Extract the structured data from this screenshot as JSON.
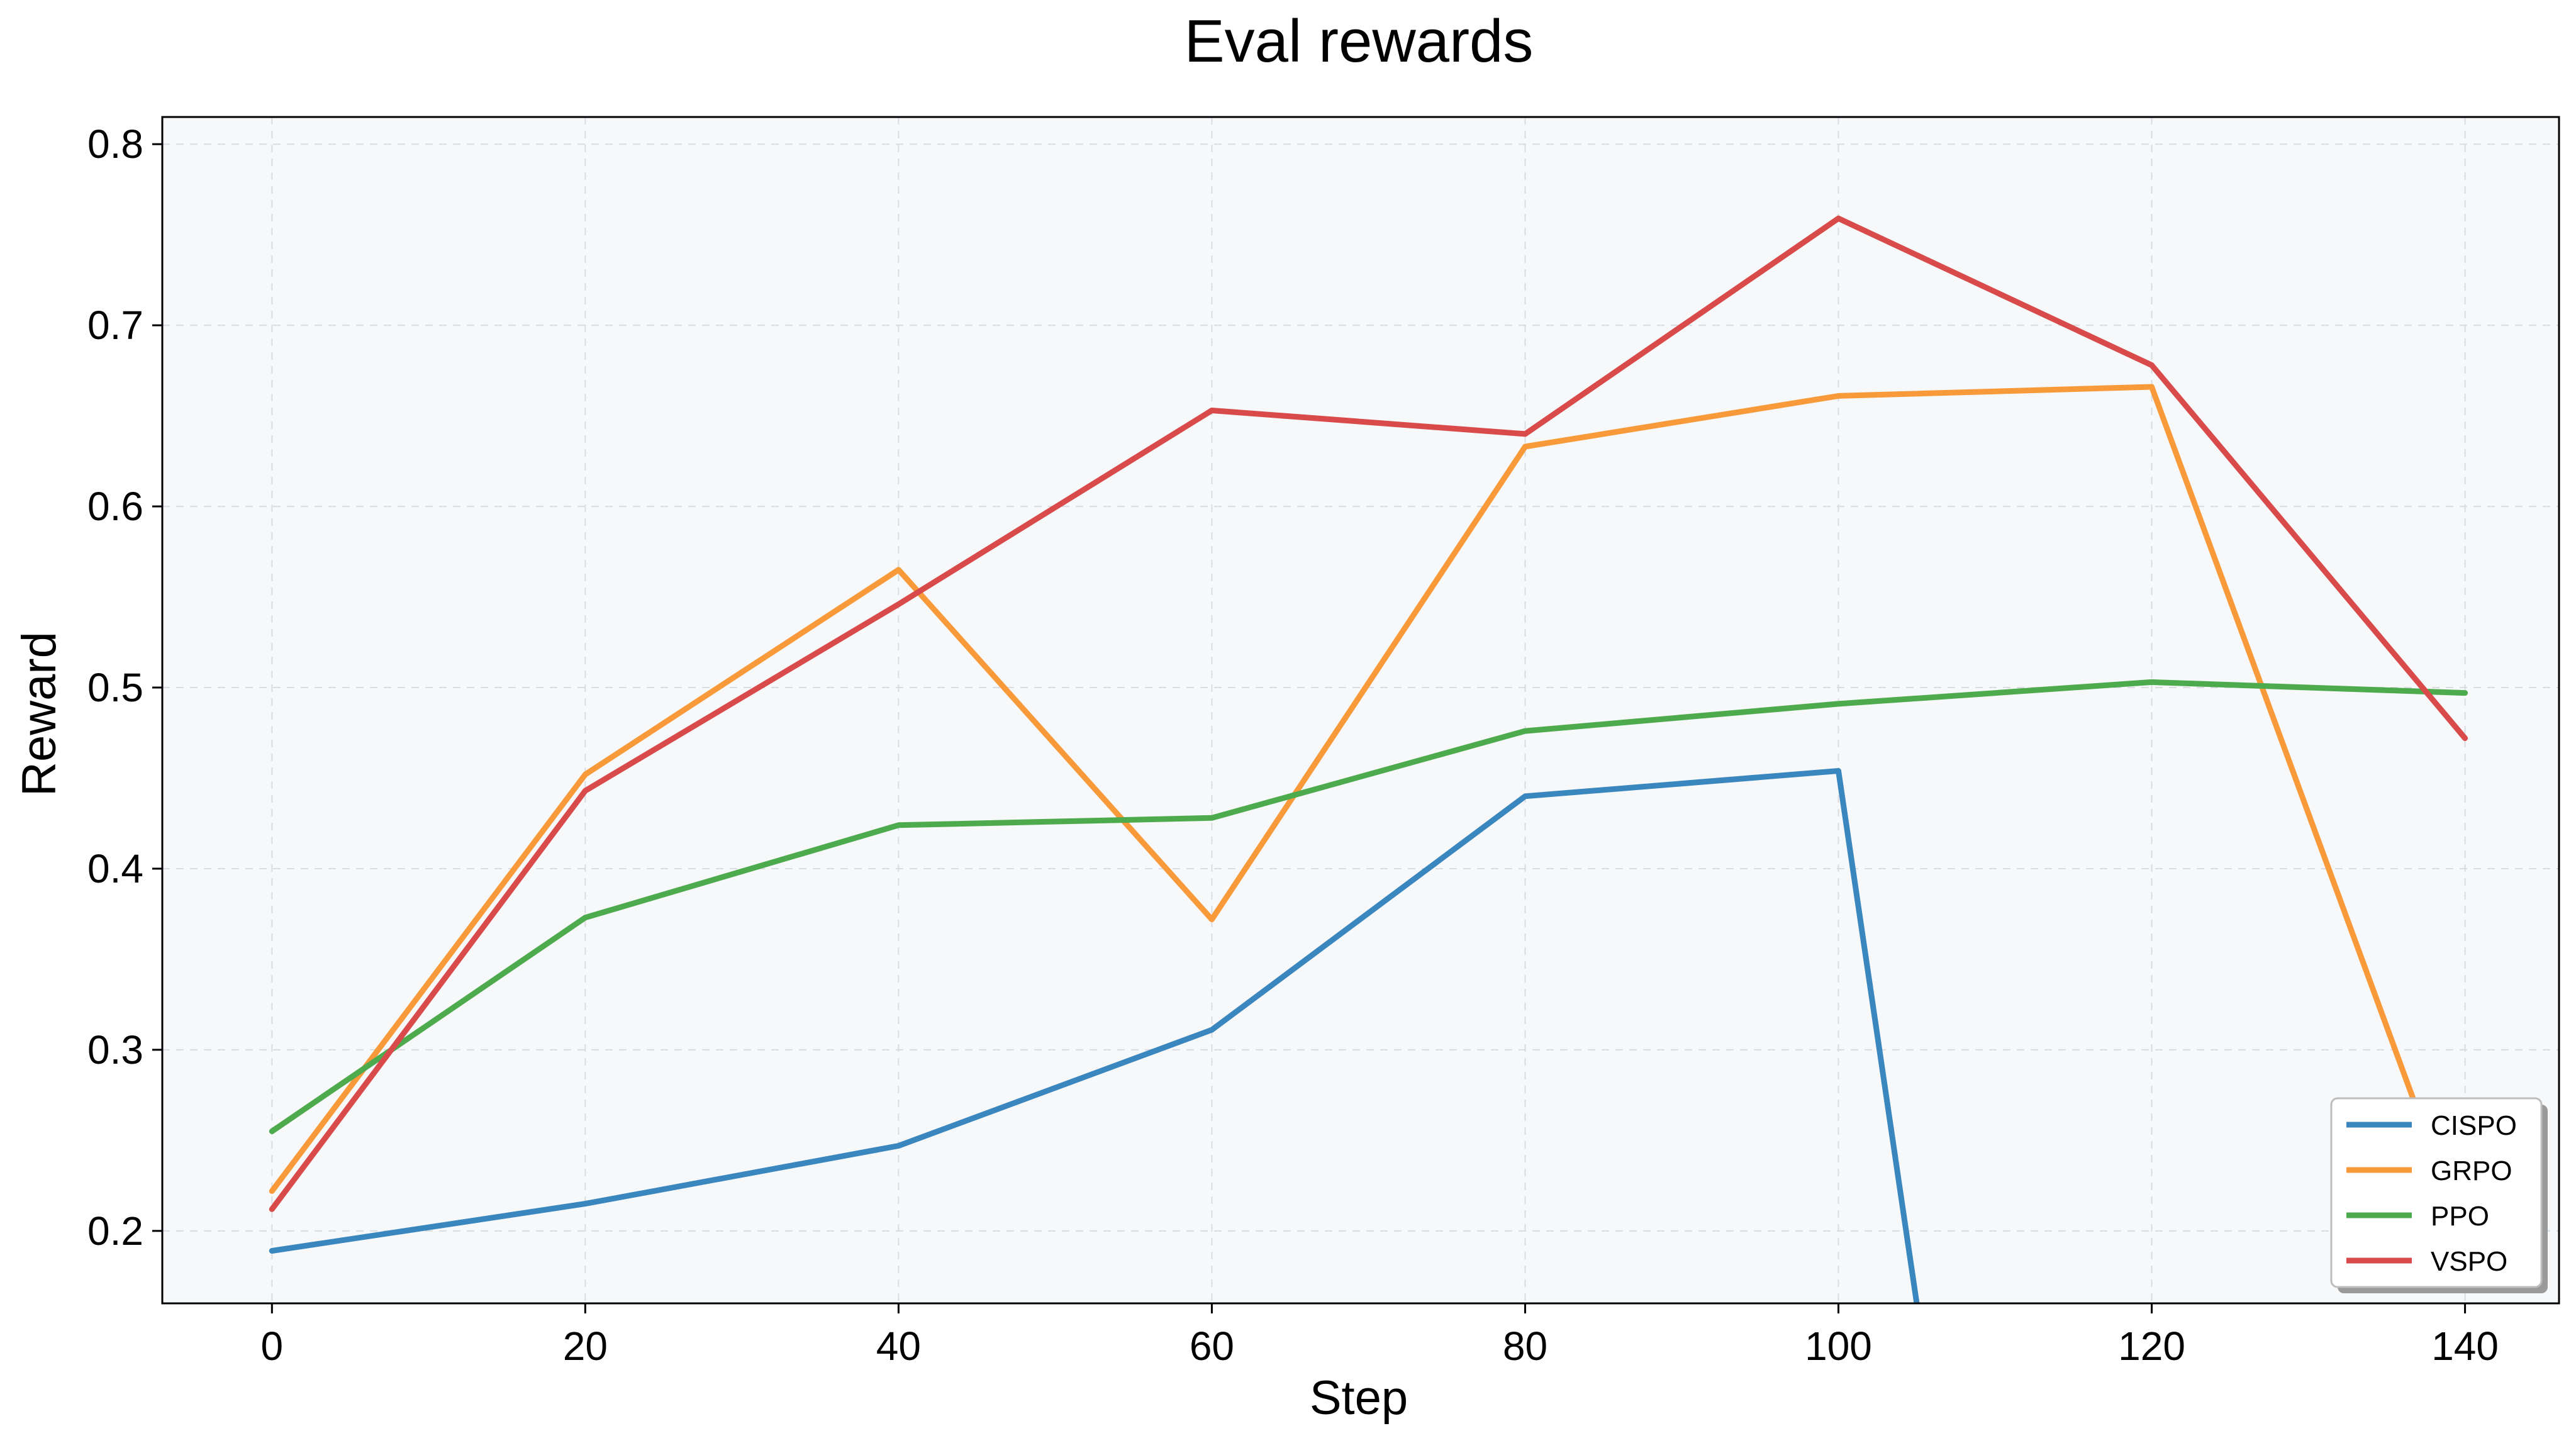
{
  "chart_data": {
    "type": "line",
    "title": "Eval rewards",
    "xlabel": "Step",
    "ylabel": "Reward",
    "x": [
      0,
      20,
      40,
      60,
      80,
      100,
      120,
      140
    ],
    "xlim": [
      -7,
      146
    ],
    "ylim": [
      0.16,
      0.815
    ],
    "xticks": [
      0,
      20,
      40,
      60,
      80,
      100,
      120,
      140
    ],
    "yticks": [
      0.2,
      0.3,
      0.4,
      0.5,
      0.6,
      0.7,
      0.8
    ],
    "grid": true,
    "legend_position": "lower right",
    "background": "#f6f8fa",
    "series": [
      {
        "name": "CISPO",
        "color": "#3a86be",
        "points": [
          [
            0,
            0.189
          ],
          [
            20,
            0.215
          ],
          [
            40,
            0.247
          ],
          [
            60,
            0.311
          ],
          [
            80,
            0.44
          ],
          [
            100,
            0.454
          ],
          [
            105,
            0.16
          ]
        ]
      },
      {
        "name": "GRPO",
        "color": "#f89a3a",
        "points": [
          [
            0,
            0.222
          ],
          [
            20,
            0.452
          ],
          [
            40,
            0.565
          ],
          [
            60,
            0.372
          ],
          [
            80,
            0.633
          ],
          [
            100,
            0.661
          ],
          [
            120,
            0.666
          ],
          [
            140,
            0.195
          ]
        ]
      },
      {
        "name": "PPO",
        "color": "#4daa4d",
        "points": [
          [
            0,
            0.255
          ],
          [
            20,
            0.373
          ],
          [
            40,
            0.424
          ],
          [
            60,
            0.428
          ],
          [
            80,
            0.476
          ],
          [
            100,
            0.491
          ],
          [
            120,
            0.503
          ],
          [
            140,
            0.497
          ]
        ]
      },
      {
        "name": "VSPO",
        "color": "#d94a4a",
        "points": [
          [
            0,
            0.212
          ],
          [
            20,
            0.443
          ],
          [
            40,
            0.546
          ],
          [
            60,
            0.653
          ],
          [
            80,
            0.64
          ],
          [
            100,
            0.759
          ],
          [
            120,
            0.678
          ],
          [
            140,
            0.472
          ]
        ]
      }
    ]
  }
}
